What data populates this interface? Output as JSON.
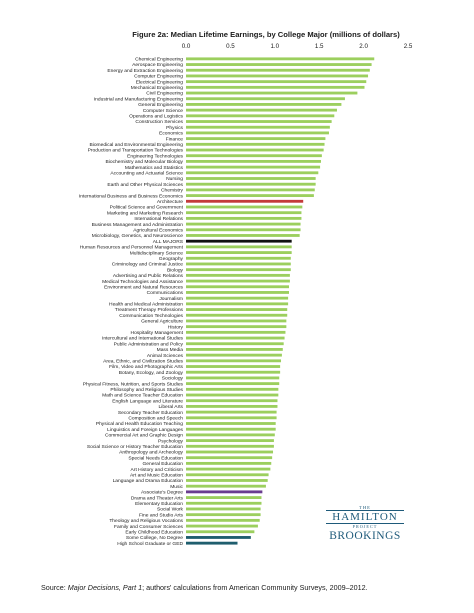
{
  "chart_data": {
    "type": "bar",
    "orientation": "horizontal",
    "title": "Figure 2a: Median Lifetime Earnings, by College Major (millions of dollars)",
    "xlim": [
      0,
      2.5
    ],
    "xticks": [
      "0.0",
      "0.5",
      "1.0",
      "1.5",
      "2.0",
      "2.5"
    ],
    "grid": false,
    "colors": {
      "default": "#9ccf5e",
      "Architecture": "#c43a3a",
      "ALL MAJORS": "#111111",
      "Associate's Degree": "#6a3d8f",
      "Some College, No Degree": "#1f5e6e",
      "High School Graduate or GED": "#1f5e6e"
    },
    "categories": [
      "Chemical Engineering",
      "Aerospace Engineering",
      "Energy and Extraction Engineering",
      "Computer Engineering",
      "Electrical Engineering",
      "Mechanical Engineering",
      "Civil Engineering",
      "Industrial and Manufacturing Engineering",
      "General Engineering",
      "Computer Science",
      "Operations and Logistics",
      "Construction Services",
      "Physics",
      "Economics",
      "Finance",
      "Biomedical and Environmental Engineering",
      "Production and Transportation Technologies",
      "Engineering Technologies",
      "Biochemistry and Molecular Biology",
      "Mathematics and Statistics",
      "Accounting and Actuarial Science",
      "Nursing",
      "Earth and Other Physical Sciences",
      "Chemistry",
      "International Business and Business Economics",
      "Architecture",
      "Political Science and Government",
      "Marketing and Marketing Research",
      "International Relations",
      "Business Management and Administration",
      "Agricultural Economics",
      "Microbiology, Genetics, and Neuroscience",
      "ALL MAJORS",
      "Human Resources and Personnel Management",
      "Multidisciplinary Science",
      "Geography",
      "Criminology and Criminal Justice",
      "Biology",
      "Advertising and Public Relations",
      "Medical Technologies and Assistance",
      "Environment and Natural Resources",
      "Communications",
      "Journalism",
      "Health and Medical Administration",
      "Treatment Therapy Professions",
      "Communication Technologies",
      "General Agriculture",
      "History",
      "Hospitality Management",
      "Intercultural and International Studies",
      "Public Administration and Policy",
      "Mass Media",
      "Animal Sciences",
      "Area, Ethnic, and Civilization Studies",
      "Film, Video and Photographic Arts",
      "Botany, Ecology, and Zoology",
      "Sociology",
      "Physical Fitness, Nutrition, and Sports Studies",
      "Philosophy and Religious Studies",
      "Math and Science Teacher Education",
      "English Language and Literature",
      "Liberal Arts",
      "Secondary Teacher Education",
      "Composition and Speech",
      "Physical and Health Education Teaching",
      "Linguistics and Foreign Languages",
      "Commercial Art and Graphic Design",
      "Psychology",
      "Social Science or History Teacher Education",
      "Anthropology and Archeology",
      "Special Needs Education",
      "General Education",
      "Art History and Criticism",
      "Art and Music Education",
      "Language and Drama Education",
      "Music",
      "Associate's Degree",
      "Drama and Theater Arts",
      "Elementary Education",
      "Social Work",
      "Fine and Studio Arts",
      "Theology and Religious Vocations",
      "Family and Consumer Sciences",
      "Early Childhood Education",
      "Some College, No Degree",
      "High School Graduate or GED"
    ],
    "values": [
      2.12,
      2.09,
      2.07,
      2.05,
      2.03,
      2.01,
      1.93,
      1.79,
      1.75,
      1.7,
      1.67,
      1.64,
      1.62,
      1.61,
      1.57,
      1.56,
      1.55,
      1.53,
      1.52,
      1.51,
      1.49,
      1.46,
      1.46,
      1.45,
      1.44,
      1.32,
      1.31,
      1.3,
      1.3,
      1.29,
      1.29,
      1.28,
      1.19,
      1.19,
      1.19,
      1.18,
      1.18,
      1.18,
      1.17,
      1.17,
      1.16,
      1.16,
      1.15,
      1.15,
      1.14,
      1.14,
      1.13,
      1.13,
      1.12,
      1.11,
      1.1,
      1.09,
      1.08,
      1.07,
      1.06,
      1.06,
      1.05,
      1.05,
      1.04,
      1.04,
      1.03,
      1.03,
      1.02,
      1.02,
      1.01,
      1.01,
      1.0,
      0.99,
      0.99,
      0.98,
      0.97,
      0.96,
      0.95,
      0.93,
      0.92,
      0.9,
      0.86,
      0.85,
      0.85,
      0.84,
      0.84,
      0.83,
      0.81,
      0.77,
      0.73,
      0.58
    ]
  },
  "source": {
    "prefix": "Source: ",
    "italic": "Major Decisions, Part 1",
    "suffix": "; authors' calculations from American Community Surveys, 2009–2012."
  },
  "logo": {
    "the": "THE",
    "hamilton": "HAMILTON",
    "project": "PROJECT",
    "brookings": "BROOKINGS"
  }
}
